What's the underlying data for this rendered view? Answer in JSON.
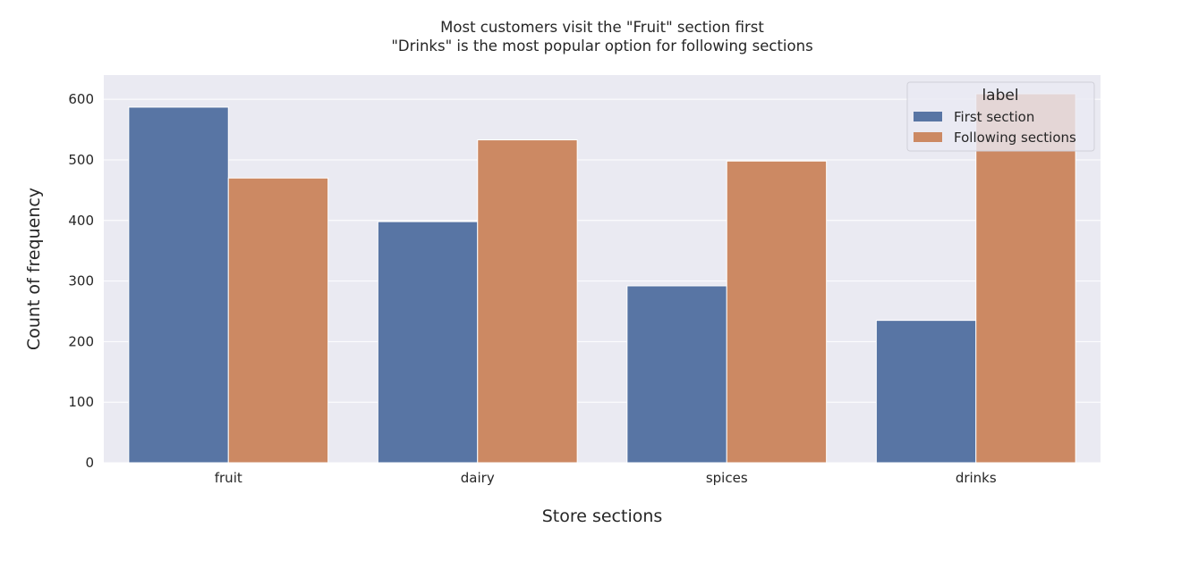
{
  "chart_data": {
    "type": "bar",
    "title_lines": [
      "Most customers visit the \"Fruit\" section first",
      "\"Drinks\" is the most popular option for following sections"
    ],
    "xlabel": "Store sections",
    "ylabel": "Count of frequency",
    "categories": [
      "fruit",
      "dairy",
      "spices",
      "drinks"
    ],
    "series": [
      {
        "name": "First section",
        "color": "#5875a4",
        "values": [
          587,
          398,
          292,
          235
        ]
      },
      {
        "name": "Following sections",
        "color": "#cc8963",
        "values": [
          470,
          533,
          498,
          609
        ]
      }
    ],
    "ylim": [
      0,
      640
    ],
    "yticks": [
      0,
      100,
      200,
      300,
      400,
      500,
      600
    ],
    "grid": true,
    "legend": {
      "title": "label",
      "placement": "top-right"
    }
  }
}
